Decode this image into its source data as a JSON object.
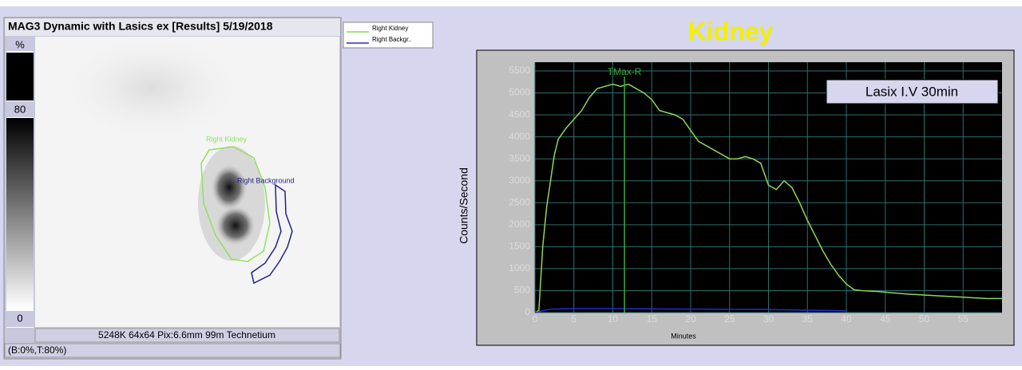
{
  "left_panel": {
    "title": "MAG3 Dynamic with Lasics ex [Results] 5/19/2018",
    "scale_labels": [
      "%",
      "80",
      "0"
    ],
    "roi_labels": [
      "Right Kidney",
      "Right Background"
    ],
    "footer": "5248K 64x64 Pix:6.6mm 99m Technetium",
    "status": "(B:0%,T:80%)"
  },
  "chart_data": {
    "type": "line",
    "title": "Kidney",
    "x_label": "Minutes",
    "y_label": "Counts/Second",
    "annotations": [
      "TMax-R",
      "Lasix I.V 30min"
    ],
    "tmax_x": 11.5,
    "xlim": [
      0,
      60
    ],
    "ylim": [
      0,
      5700
    ],
    "xticks": [
      0,
      5,
      10,
      15,
      20,
      25,
      30,
      35,
      40,
      45,
      50,
      55
    ],
    "yticks": [
      0,
      500,
      1000,
      1500,
      2000,
      2500,
      3000,
      3500,
      4000,
      4500,
      5000,
      5500
    ],
    "grid": true,
    "series": [
      {
        "name": "Right Kidney",
        "color": "#8fd65a",
        "x": [
          0,
          0.5,
          1,
          1.5,
          2,
          2.5,
          3,
          4,
          5,
          6,
          7,
          8,
          9,
          10,
          11,
          12,
          13,
          14,
          15,
          16,
          17,
          18,
          19,
          20,
          21,
          22,
          23,
          24,
          25,
          26,
          27,
          28,
          29,
          30,
          31,
          32,
          33,
          34,
          35,
          36,
          37,
          38,
          39,
          40,
          41,
          42,
          44,
          46,
          48,
          50,
          52,
          54,
          56,
          58,
          60
        ],
        "values": [
          0,
          50,
          1500,
          2400,
          3000,
          3600,
          3950,
          4200,
          4400,
          4600,
          4900,
          5100,
          5150,
          5200,
          5150,
          5200,
          5100,
          5000,
          4850,
          4600,
          4550,
          4500,
          4400,
          4150,
          3900,
          3800,
          3700,
          3600,
          3500,
          3500,
          3550,
          3500,
          3400,
          2900,
          2800,
          3000,
          2850,
          2500,
          2100,
          1750,
          1400,
          1100,
          850,
          650,
          520,
          500,
          480,
          450,
          420,
          400,
          380,
          360,
          340,
          320,
          320
        ]
      },
      {
        "name": "Right Backgr..",
        "color": "#2a2ad0",
        "x": [
          0,
          1,
          2,
          5,
          10,
          15,
          20,
          25,
          30,
          35,
          40
        ],
        "values": [
          0,
          40,
          80,
          90,
          90,
          85,
          80,
          75,
          70,
          55,
          40
        ]
      }
    ]
  }
}
